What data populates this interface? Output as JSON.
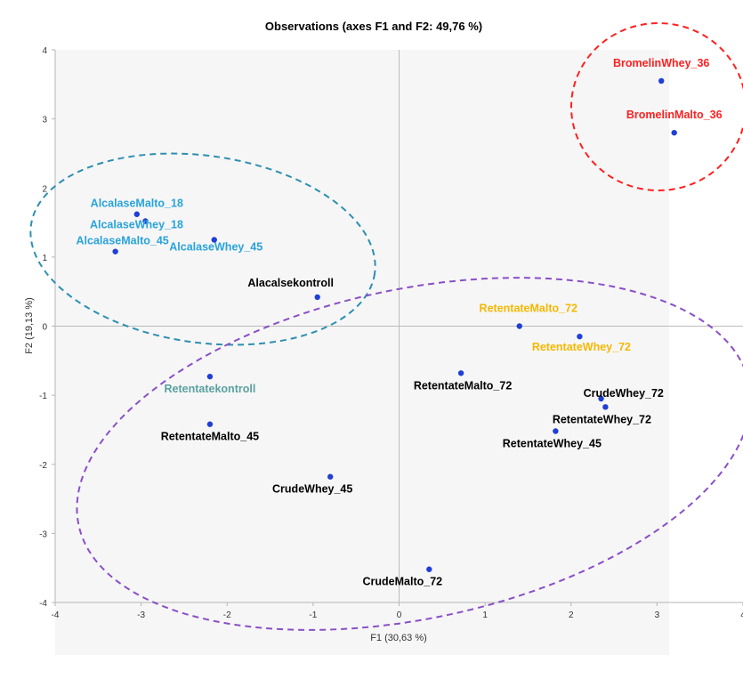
{
  "chart_data": {
    "type": "scatter",
    "title": "Observations (axes F1 and F2: 49,76 %)",
    "xlabel": "F1 (30,63 %)",
    "ylabel": "F2 (19,13 %)",
    "xlim": [
      -4,
      4
    ],
    "ylim": [
      -4,
      4
    ],
    "xticks": [
      "-4",
      "-3",
      "-2",
      "-1",
      "0",
      "1",
      "2",
      "3",
      "4"
    ],
    "yticks": [
      "-4",
      "-3",
      "-2",
      "-1",
      "0",
      "1",
      "2",
      "3",
      "4"
    ],
    "grid": false,
    "colors": {
      "point": "#1f3fd6",
      "alcalase": "#29a3dc",
      "bromelin": "#ff2020",
      "retentate_orange": "#f5b800",
      "retentate_kontroll": "#5aa0a0",
      "default_label": "#000000",
      "ellipse_blue": "#2d8fb0",
      "ellipse_red": "#ff2020",
      "ellipse_purple": "#8a4fc7"
    },
    "points": [
      {
        "label": "BromelinWhey_36",
        "x": 3.05,
        "y": 3.55,
        "color": "#ff2020"
      },
      {
        "label": "BromelinMalto_36",
        "x": 3.2,
        "y": 2.8,
        "color": "#ff2020"
      },
      {
        "label": "AlcalaseMalto_18",
        "x": -3.05,
        "y": 1.62,
        "color": "#29a3dc"
      },
      {
        "label": "AlcalaseWhey_18",
        "x": -2.95,
        "y": 1.52,
        "color": "#29a3dc"
      },
      {
        "label": "AlcalaseWhey_45",
        "x": -2.15,
        "y": 1.25,
        "color": "#29a3dc"
      },
      {
        "label": "AlcalaseMalto_45",
        "x": -3.3,
        "y": 1.08,
        "color": "#29a3dc"
      },
      {
        "label": "Alacalsekontroll",
        "x": -0.95,
        "y": 0.42,
        "color": "#000000"
      },
      {
        "label": "RetentateMalto_72",
        "x": 1.4,
        "y": 0.0,
        "color": "#f5b800"
      },
      {
        "label": "RetentateWhey_72",
        "x": 2.1,
        "y": -0.15,
        "color": "#f5b800"
      },
      {
        "label": "RetentateMalto_72",
        "x": 0.72,
        "y": -0.68,
        "color": "#000000"
      },
      {
        "label": "Retentatekontroll",
        "x": -2.2,
        "y": -0.73,
        "color": "#5aa0a0"
      },
      {
        "label": "CrudeWhey_72",
        "x": 2.35,
        "y": -1.05,
        "color": "#000000"
      },
      {
        "label": "RetentateWhey_72",
        "x": 2.4,
        "y": -1.17,
        "color": "#000000"
      },
      {
        "label": "RetentateMalto_45",
        "x": -2.2,
        "y": -1.42,
        "color": "#000000"
      },
      {
        "label": "RetentateWhey_45",
        "x": 1.82,
        "y": -1.52,
        "color": "#000000"
      },
      {
        "label": "CrudeWhey_45",
        "x": -0.8,
        "y": -2.18,
        "color": "#000000"
      },
      {
        "label": "CrudeMalto_72",
        "x": 0.35,
        "y": -3.52,
        "color": "#000000"
      }
    ]
  }
}
